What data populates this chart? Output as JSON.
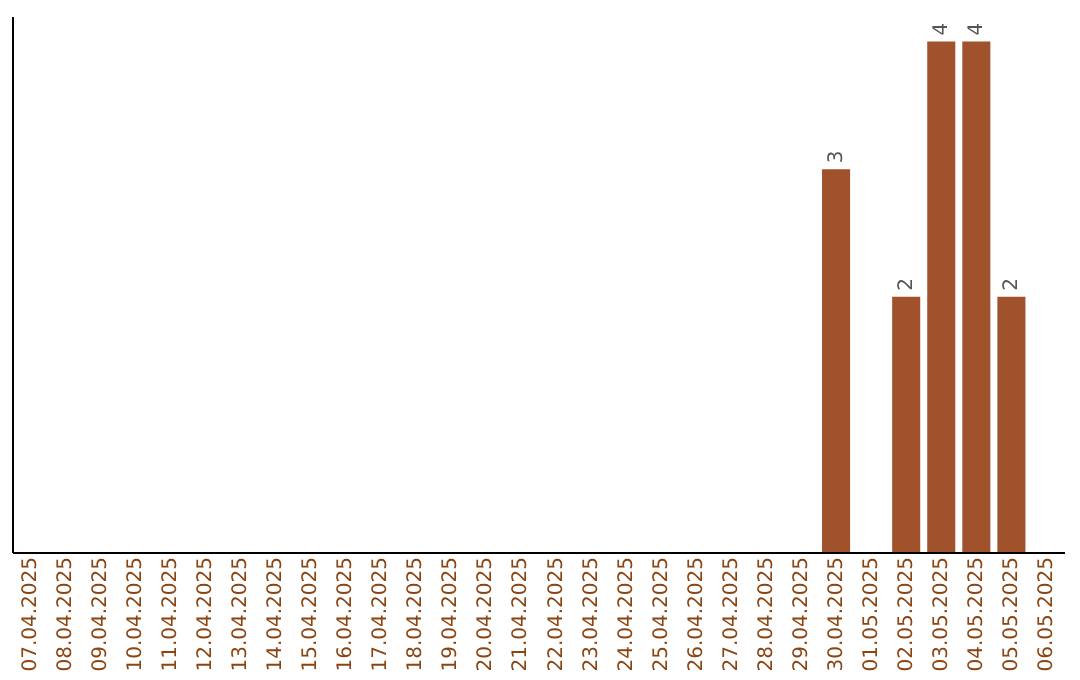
{
  "chart_data": {
    "type": "bar",
    "categories": [
      "07.04.2025",
      "08.04.2025",
      "09.04.2025",
      "10.04.2025",
      "11.04.2025",
      "12.04.2025",
      "13.04.2025",
      "14.04.2025",
      "15.04.2025",
      "16.04.2025",
      "17.04.2025",
      "18.04.2025",
      "19.04.2025",
      "20.04.2025",
      "21.04.2025",
      "22.04.2025",
      "23.04.2025",
      "24.04.2025",
      "25.04.2025",
      "26.04.2025",
      "27.04.2025",
      "28.04.2025",
      "29.04.2025",
      "30.04.2025",
      "01.05.2025",
      "02.05.2025",
      "03.05.2025",
      "04.05.2025",
      "05.05.2025",
      "06.05.2025"
    ],
    "values": [
      null,
      null,
      null,
      null,
      null,
      null,
      null,
      null,
      null,
      null,
      null,
      null,
      null,
      null,
      null,
      null,
      null,
      null,
      null,
      null,
      null,
      null,
      null,
      3,
      null,
      2,
      4,
      4,
      2,
      null
    ],
    "value_labels": [
      null,
      null,
      null,
      null,
      null,
      null,
      null,
      null,
      null,
      null,
      null,
      null,
      null,
      null,
      null,
      null,
      null,
      null,
      null,
      null,
      null,
      null,
      null,
      "3",
      null,
      "2",
      "4",
      "4",
      "2",
      null
    ],
    "color": "#a0522d",
    "ylim": [
      0,
      4.2
    ],
    "tick_labels": "x",
    "grid": false
  }
}
